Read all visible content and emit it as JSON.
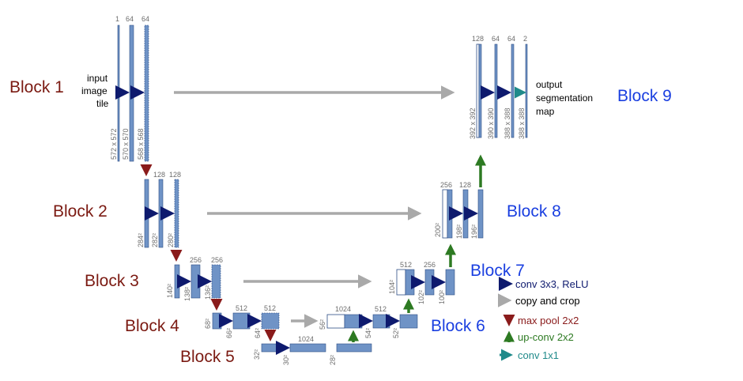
{
  "colors": {
    "block_left": "#7b1a12",
    "block_right": "#1a3fe0",
    "layer_fill": "#6f93c6",
    "layer_stroke": "#2d4d86",
    "dark_blue": "#0e1a6e",
    "grey": "#a9a9a9",
    "dark_red": "#8a1b1b",
    "green": "#2d7a22",
    "teal": "#1f8a8a",
    "tiny_text": "#6d6d6d"
  },
  "blocks": {
    "b1": "Block 1",
    "b2": "Block 2",
    "b3": "Block 3",
    "b4": "Block 4",
    "b5": "Block 5",
    "b6": "Block 6",
    "b7": "Block 7",
    "b8": "Block 8",
    "b9": "Block 9"
  },
  "input_label": [
    "input",
    "image",
    "tile"
  ],
  "output_label": [
    "output",
    "segmentation",
    "map"
  ],
  "channels": {
    "b1": [
      "1",
      "64",
      "64"
    ],
    "b2": [
      "128",
      "128"
    ],
    "b3": [
      "256",
      "256"
    ],
    "b4": [
      "512",
      "512"
    ],
    "b5": [
      "1024"
    ],
    "b6": [
      "1024",
      "512"
    ],
    "b7": [
      "512",
      "256"
    ],
    "b8": [
      "256",
      "128"
    ],
    "b9": [
      "128",
      "64",
      "64",
      "2"
    ]
  },
  "sizes": {
    "b1": [
      "572 x 572",
      "570 x 570",
      "568 x 568"
    ],
    "b2": [
      "284²",
      "282²",
      "280²"
    ],
    "b3": [
      "140²",
      "138²",
      "136²"
    ],
    "b4": [
      "68²",
      "66²",
      "64²"
    ],
    "b5": [
      "32²",
      "30²",
      "28²"
    ],
    "b6": [
      "56²",
      "54²",
      "52²"
    ],
    "b7": [
      "104²",
      "102²",
      "100²"
    ],
    "b8": [
      "200²",
      "198²",
      "196²"
    ],
    "b9": [
      "392 x 392",
      "390 x 390",
      "388 x 388",
      "388 x 388"
    ]
  },
  "legend": {
    "conv": "conv 3x3, ReLU",
    "copy": "copy and crop",
    "pool": "max pool 2x2",
    "up": "up-conv 2x2",
    "conv1": "conv 1x1"
  }
}
